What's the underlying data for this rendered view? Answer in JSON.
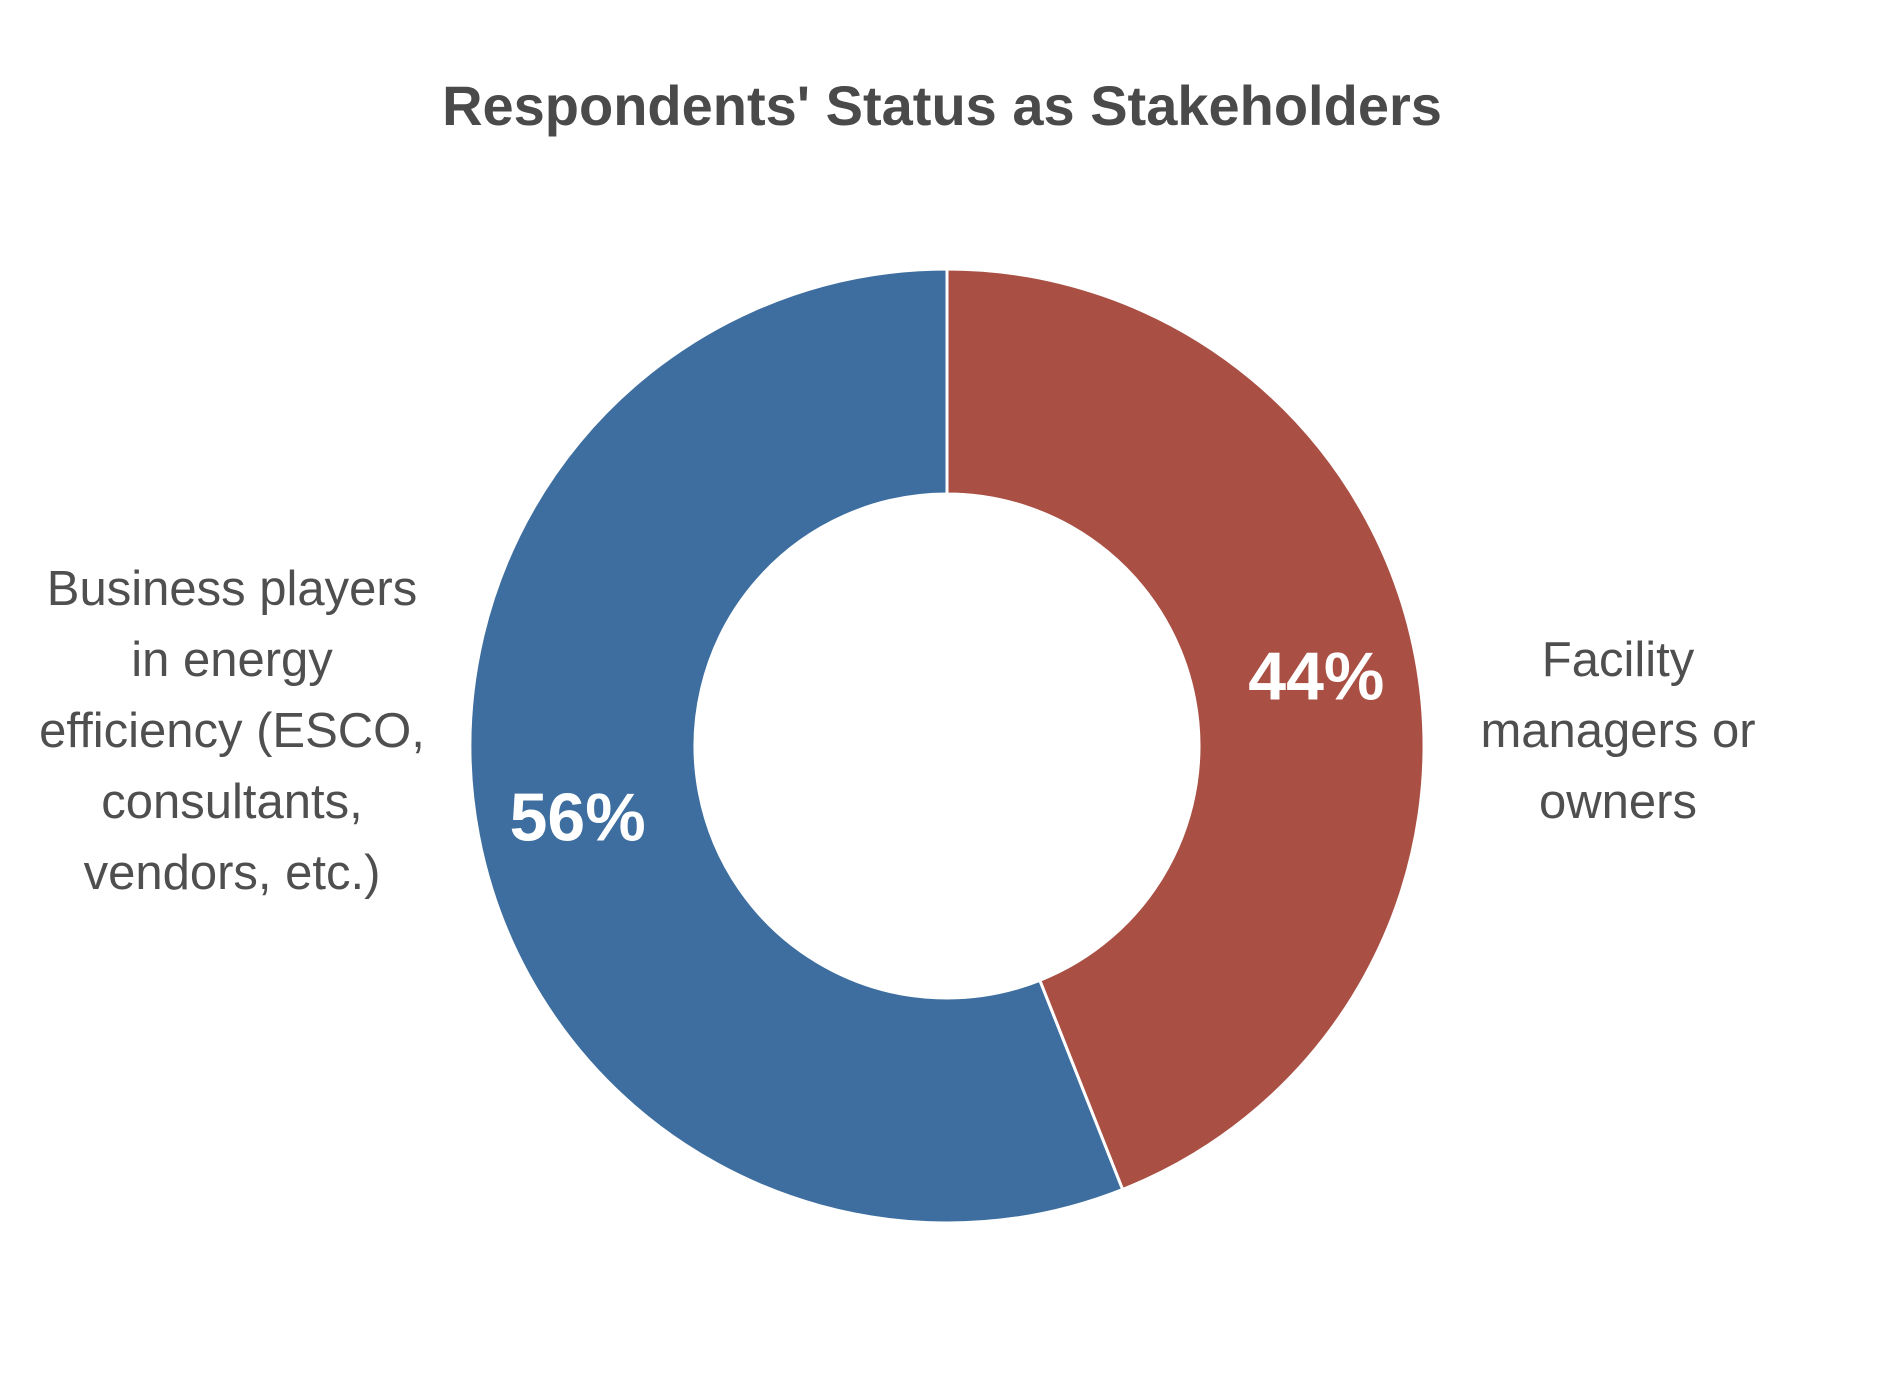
{
  "chart_data": {
    "type": "pie",
    "variant": "donut",
    "title": "Respondents' Status as Stakeholders",
    "slices": [
      {
        "label_lines": [
          "Facility",
          "managers or",
          "owners"
        ],
        "value": 44,
        "value_label": "44%",
        "color": "#a94f43"
      },
      {
        "label_lines": [
          "Business players",
          "in energy",
          "efficiency (ESCO,",
          "consultants,",
          "vendors, etc.)"
        ],
        "value": 56,
        "value_label": "56%",
        "color": "#3d6e9f"
      }
    ],
    "legend": "none",
    "start_angle": "12 o'clock",
    "direction": "clockwise"
  }
}
